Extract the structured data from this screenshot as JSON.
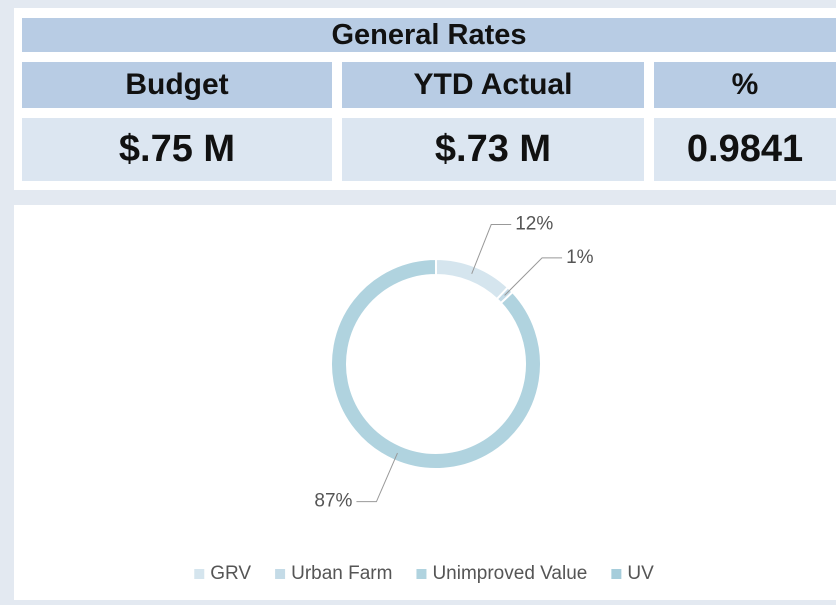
{
  "header": {
    "title": "General Rates",
    "columns": [
      "Budget",
      "YTD Actual",
      "%"
    ],
    "values": [
      "$.75 M",
      "$.73 M",
      "0.9841"
    ]
  },
  "chart_data": {
    "type": "pie",
    "categories": [
      "GRV",
      "Urban Farm",
      "Unimproved Value",
      "UV"
    ],
    "values": [
      12,
      1,
      87,
      0
    ],
    "value_labels": [
      "12%",
      "1%",
      "87%",
      null
    ],
    "colors": [
      "#d5e5ee",
      "#c4dbe7",
      "#b0d3df",
      "#a6cddb"
    ],
    "legend": "bottom"
  }
}
